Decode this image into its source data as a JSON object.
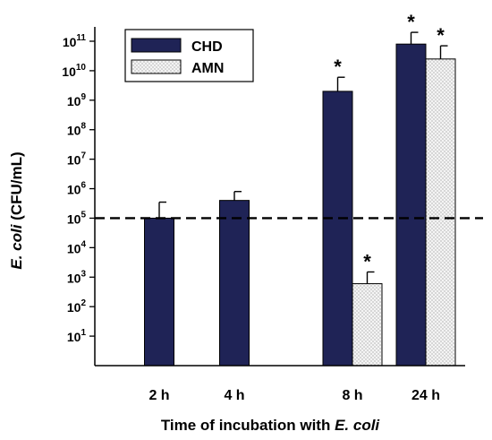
{
  "chart_data": {
    "type": "bar",
    "log_scale": true,
    "categories": [
      "2 h",
      "4 h",
      "8 h",
      "24 h"
    ],
    "series": [
      {
        "name": "CHD",
        "color": "#1f2356",
        "values": [
          100000,
          400000,
          2000000000,
          80000000000
        ],
        "error_upper": [
          350000,
          800000,
          6000000000,
          200000000000
        ],
        "significant": [
          false,
          false,
          true,
          true
        ]
      },
      {
        "name": "AMN",
        "color": "#f2f2f2",
        "pattern": "dotted",
        "values": [
          null,
          null,
          600,
          25000000000
        ],
        "error_upper": [
          null,
          null,
          1500,
          70000000000
        ],
        "significant": [
          false,
          false,
          true,
          true
        ]
      }
    ],
    "ylim": [
      1,
      100000000000
    ],
    "yticks": [
      {
        "base": "10",
        "exp": "1"
      },
      {
        "base": "10",
        "exp": "2"
      },
      {
        "base": "10",
        "exp": "3"
      },
      {
        "base": "10",
        "exp": "4"
      },
      {
        "base": "10",
        "exp": "5"
      },
      {
        "base": "10",
        "exp": "6"
      },
      {
        "base": "10",
        "exp": "7"
      },
      {
        "base": "10",
        "exp": "8"
      },
      {
        "base": "10",
        "exp": "9"
      },
      {
        "base": "10",
        "exp": "10"
      },
      {
        "base": "10",
        "exp": "11"
      }
    ],
    "threshold": 100000,
    "significance_mark": "*",
    "xlabel": {
      "prefix": "Time of incubation with ",
      "italic": "E. coli"
    },
    "ylabel": {
      "italic": "E. coli",
      "suffix": " (CFU/mL)"
    },
    "legend": {
      "placement": "top-left"
    },
    "grid": false
  }
}
